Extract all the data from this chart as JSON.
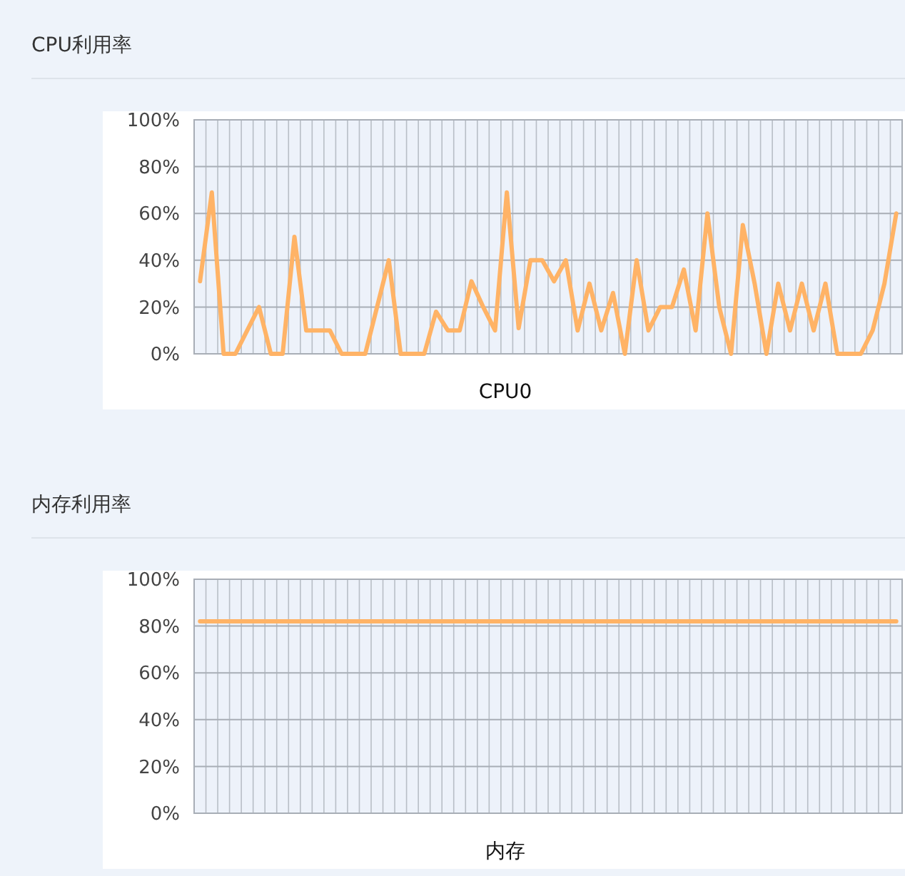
{
  "chart_data": [
    {
      "type": "line",
      "title": "CPU利用率",
      "xlabel": "CPU0",
      "categories": [
        null,
        null,
        null,
        null,
        null,
        null,
        null,
        null,
        null,
        null,
        null,
        null,
        null,
        null,
        null,
        null,
        null,
        null,
        null,
        null,
        null,
        null,
        null,
        null,
        null,
        null,
        null,
        null,
        null,
        null,
        null,
        null,
        null,
        null,
        null,
        null,
        null,
        null,
        null,
        null,
        null,
        null,
        null,
        null,
        null,
        null,
        null,
        null,
        null,
        null,
        null,
        null,
        null,
        null,
        null,
        null,
        null,
        null,
        null,
        null
      ],
      "series": [
        {
          "color": "#ffb366",
          "values": [
            31,
            69,
            0,
            0,
            10,
            20,
            0,
            0,
            50,
            10,
            10,
            10,
            0,
            0,
            0,
            20,
            40,
            0,
            0,
            0,
            18,
            10,
            10,
            31,
            20,
            10,
            69,
            11,
            40,
            40,
            31,
            40,
            10,
            30,
            10,
            26,
            0,
            40,
            10,
            20,
            20,
            36,
            10,
            60,
            20,
            0,
            55,
            30,
            0,
            30,
            10,
            30,
            10,
            30,
            0,
            0,
            0,
            10,
            30,
            60
          ]
        }
      ],
      "ylim": [
        0,
        100
      ],
      "yticks": [
        {
          "value": 0,
          "label": "0%"
        },
        {
          "value": 20,
          "label": "20%"
        },
        {
          "value": 40,
          "label": "40%"
        },
        {
          "value": 60,
          "label": "60%"
        },
        {
          "value": 80,
          "label": "80%"
        },
        {
          "value": 100,
          "label": "100%"
        }
      ],
      "grid": true,
      "tick_labels": "y"
    },
    {
      "type": "line",
      "title": "内存利用率",
      "xlabel": "内存",
      "categories": [
        null,
        null,
        null,
        null,
        null,
        null,
        null,
        null,
        null,
        null,
        null,
        null,
        null,
        null,
        null,
        null,
        null,
        null,
        null,
        null,
        null,
        null,
        null,
        null,
        null,
        null,
        null,
        null,
        null,
        null,
        null,
        null,
        null,
        null,
        null,
        null,
        null,
        null,
        null,
        null,
        null,
        null,
        null,
        null,
        null,
        null,
        null,
        null,
        null,
        null,
        null,
        null,
        null,
        null,
        null,
        null,
        null,
        null,
        null,
        null
      ],
      "series": [
        {
          "color": "#ffb366",
          "values": [
            82,
            82,
            82,
            82,
            82,
            82,
            82,
            82,
            82,
            82,
            82,
            82,
            82,
            82,
            82,
            82,
            82,
            82,
            82,
            82,
            82,
            82,
            82,
            82,
            82,
            82,
            82,
            82,
            82,
            82,
            82,
            82,
            82,
            82,
            82,
            82,
            82,
            82,
            82,
            82,
            82,
            82,
            82,
            82,
            82,
            82,
            82,
            82,
            82,
            82,
            82,
            82,
            82,
            82,
            82,
            82,
            82,
            82,
            82,
            82
          ]
        }
      ],
      "ylim": [
        0,
        100
      ],
      "yticks": [
        {
          "value": 0,
          "label": "0%"
        },
        {
          "value": 20,
          "label": "20%"
        },
        {
          "value": 40,
          "label": "40%"
        },
        {
          "value": 60,
          "label": "60%"
        },
        {
          "value": 80,
          "label": "80%"
        },
        {
          "value": 100,
          "label": "100%"
        }
      ],
      "grid": true,
      "tick_labels": "y"
    }
  ]
}
